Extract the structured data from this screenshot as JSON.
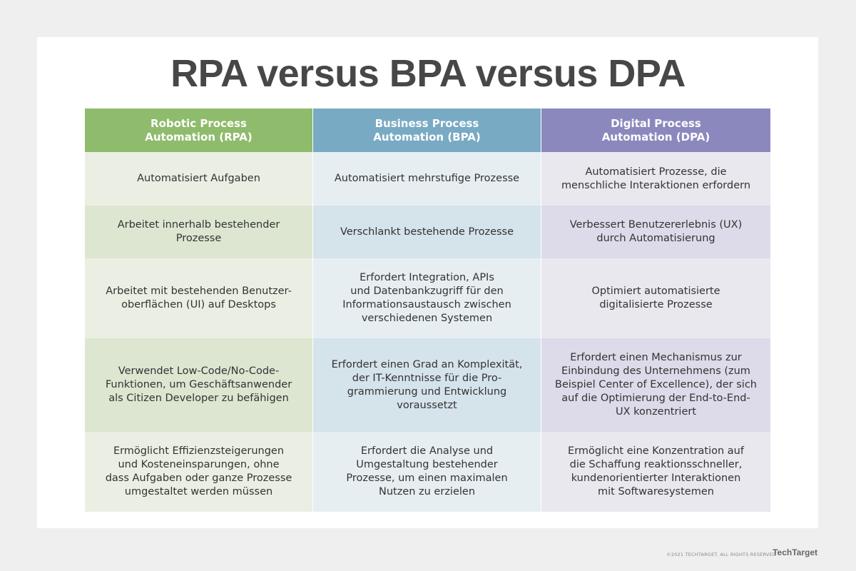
{
  "header": {
    "title": "RPA versus BPA versus DPA"
  },
  "table": {
    "columns": [
      "Robotic Process\nAutomation (RPA)",
      "Business Process\nAutomation (BPA)",
      "Digital Process\nAutomation (DPA)"
    ],
    "rows": [
      [
        "Automatisiert Aufgaben",
        "Automatisiert mehrstufige Prozesse",
        "Automatisiert Prozesse, die\nmenschliche Interaktionen erfordern"
      ],
      [
        "Arbeitet innerhalb bestehender Prozesse",
        "Verschlankt bestehende Prozesse",
        "Verbessert Benutzererlebnis (UX)\ndurch Automatisierung"
      ],
      [
        "Arbeitet mit bestehenden Benutzer-\noberflächen (UI) auf Desktops",
        "Erfordert Integration, APIs\nund Datenbankzugriff für den\nInformationsaustausch zwischen\nverschiedenen Systemen",
        "Optimiert automatisierte\ndigitalisierte Prozesse"
      ],
      [
        "Verwendet Low-Code/No-Code-\nFunktionen, um Geschäftsanwender\nals Citizen Developer zu befähigen",
        "Erfordert einen Grad an Komplexität,\nder IT-Kenntnisse für die Pro-\ngrammierung und Entwicklung\nvoraussetzt",
        "Erfordert einen Mechanismus zur\nEinbindung des Unternehmens (zum\nBeispiel Center of Excellence), der sich\nauf die Optimierung der End-to-End-\nUX konzentriert"
      ],
      [
        "Ermöglicht Effizienzsteigerungen\nund Kosteneinsparungen, ohne\ndass Aufgaben oder ganze Prozesse\numgestaltet werden müssen",
        "Erfordert die Analyse und\nUmgestaltung bestehender\nProzesse, um einen maximalen\nNutzen zu erzielen",
        "Ermöglicht eine Konzentration auf\ndie Schaffung reaktionsschneller,\nkundenorientierter Interaktionen\nmit Softwaresystemen"
      ]
    ]
  },
  "footer": {
    "copyright": "©2021 TECHTARGET. ALL RIGHTS RESERVED",
    "brand": "TechTarget"
  }
}
